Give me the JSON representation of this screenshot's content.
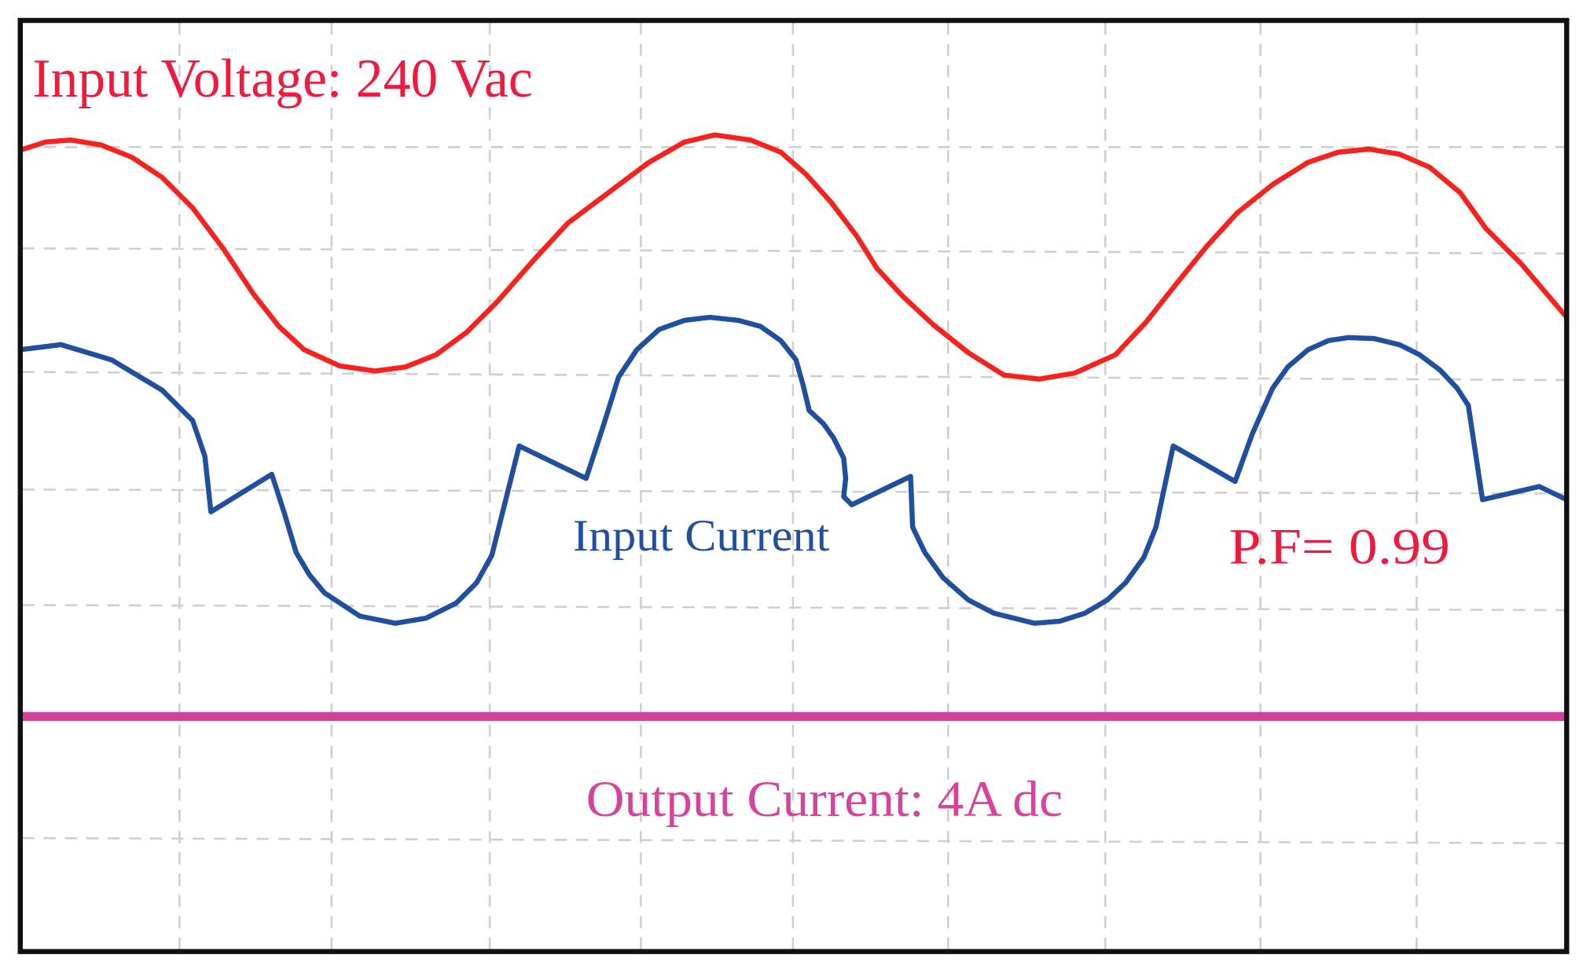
{
  "labels": {
    "input_voltage": "Input Voltage: 240 Vac",
    "input_current": "Input Current",
    "power_factor": "P.F= 0.99",
    "output_current": "Output Current: 4A dc"
  }
}
